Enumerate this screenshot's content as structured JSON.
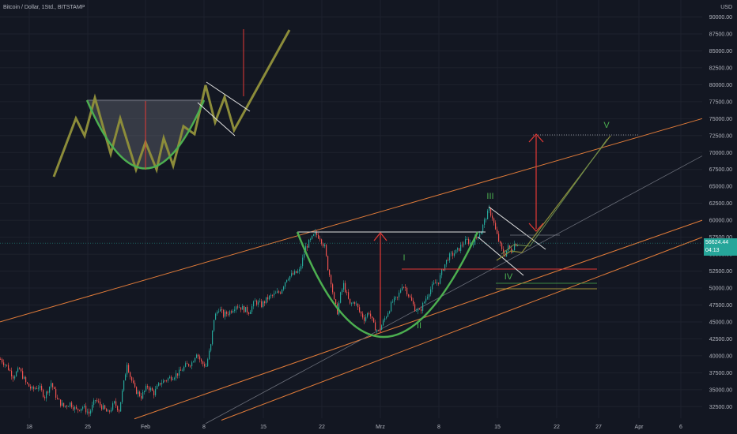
{
  "header": {
    "title": "Bitcoin / Dollar, 1Std., BITSTAMP",
    "currency": "USD"
  },
  "price_badge": {
    "price": "56624.44",
    "countdown": "04:13"
  },
  "colors": {
    "background": "#131722",
    "grid": "#1e222d",
    "axis_text": "#b2b5be",
    "candle_up": "#26a69a",
    "candle_down": "#ef5350",
    "channel": "#e07b39",
    "pattern": "#8c8c3a",
    "cup": "#4caf50",
    "arrow": "#e53935",
    "white_line": "#e0e0e0",
    "wave_label": "#4caf50"
  },
  "chart_data": {
    "type": "candlestick",
    "y_axis": {
      "min": 30000,
      "max": 90000,
      "ticks": [
        "32500.00",
        "35000.00",
        "37500.00",
        "40000.00",
        "42500.00",
        "45000.00",
        "47500.00",
        "50000.00",
        "52500.00",
        "55000.00",
        "57500.00",
        "60000.00",
        "62500.00",
        "65000.00",
        "67500.00",
        "70000.00",
        "72500.00",
        "75000.00",
        "77500.00",
        "80000.00",
        "82500.00",
        "85000.00",
        "87500.00",
        "90000.00"
      ]
    },
    "x_axis": {
      "labels": [
        "18",
        "25",
        "Feb",
        "8",
        "15",
        "22",
        "Mrz",
        "8",
        "15",
        "22",
        "27",
        "Apr",
        "6"
      ]
    },
    "price_path": [
      [
        0,
        39500
      ],
      [
        8,
        38500
      ],
      [
        16,
        37000
      ],
      [
        24,
        38000
      ],
      [
        32,
        36000
      ],
      [
        40,
        35000
      ],
      [
        48,
        35500
      ],
      [
        56,
        34000
      ],
      [
        64,
        36000
      ],
      [
        72,
        33500
      ],
      [
        80,
        32500
      ],
      [
        88,
        33000
      ],
      [
        96,
        32000
      ],
      [
        104,
        32500
      ],
      [
        112,
        31500
      ],
      [
        120,
        33500
      ],
      [
        128,
        32500
      ],
      [
        136,
        31500
      ],
      [
        144,
        33000
      ],
      [
        150,
        32000
      ],
      [
        156,
        36000
      ],
      [
        160,
        39000
      ],
      [
        164,
        37000
      ],
      [
        170,
        35000
      ],
      [
        178,
        34000
      ],
      [
        186,
        35500
      ],
      [
        194,
        34500
      ],
      [
        202,
        36000
      ],
      [
        210,
        36500
      ],
      [
        218,
        37000
      ],
      [
        226,
        37500
      ],
      [
        234,
        38500
      ],
      [
        242,
        39000
      ],
      [
        248,
        40500
      ],
      [
        254,
        39000
      ],
      [
        260,
        38500
      ],
      [
        266,
        41500
      ],
      [
        270,
        45500
      ],
      [
        276,
        47000
      ],
      [
        282,
        46000
      ],
      [
        290,
        46500
      ],
      [
        298,
        47500
      ],
      [
        306,
        47000
      ],
      [
        314,
        46500
      ],
      [
        322,
        48000
      ],
      [
        330,
        47500
      ],
      [
        338,
        48500
      ],
      [
        346,
        49000
      ],
      [
        354,
        49500
      ],
      [
        362,
        51500
      ],
      [
        370,
        52000
      ],
      [
        378,
        52500
      ],
      [
        386,
        56000
      ],
      [
        392,
        57000
      ],
      [
        398,
        58000
      ],
      [
        404,
        57500
      ],
      [
        410,
        56000
      ],
      [
        414,
        53000
      ],
      [
        418,
        51000
      ],
      [
        422,
        48000
      ],
      [
        426,
        46500
      ],
      [
        430,
        49000
      ],
      [
        434,
        50500
      ],
      [
        438,
        49000
      ],
      [
        442,
        47500
      ],
      [
        448,
        48000
      ],
      [
        454,
        46500
      ],
      [
        460,
        45500
      ],
      [
        466,
        46500
      ],
      [
        472,
        44500
      ],
      [
        478,
        43500
      ],
      [
        484,
        45000
      ],
      [
        490,
        46500
      ],
      [
        496,
        48000
      ],
      [
        502,
        48500
      ],
      [
        508,
        50500
      ],
      [
        512,
        50000
      ],
      [
        518,
        48500
      ],
      [
        524,
        47000
      ],
      [
        530,
        46500
      ],
      [
        536,
        48000
      ],
      [
        542,
        49500
      ],
      [
        548,
        50500
      ],
      [
        554,
        51000
      ],
      [
        560,
        53000
      ],
      [
        566,
        54500
      ],
      [
        572,
        55000
      ],
      [
        578,
        55500
      ],
      [
        584,
        56500
      ],
      [
        590,
        57000
      ],
      [
        596,
        56500
      ],
      [
        602,
        57500
      ],
      [
        608,
        58500
      ],
      [
        614,
        60500
      ],
      [
        618,
        61500
      ],
      [
        622,
        60500
      ],
      [
        626,
        58500
      ],
      [
        630,
        57000
      ],
      [
        634,
        55500
      ],
      [
        638,
        55000
      ],
      [
        642,
        56000
      ],
      [
        646,
        55500
      ],
      [
        650,
        56500
      ],
      [
        656,
        56600
      ]
    ],
    "levels": {
      "resistance_top": 57500,
      "red_support": 52500,
      "green_line": 50500,
      "yellow_line": 50000,
      "target_v": 72500
    },
    "wave_labels": [
      "I",
      "II",
      "III",
      "IV",
      "V"
    ]
  }
}
